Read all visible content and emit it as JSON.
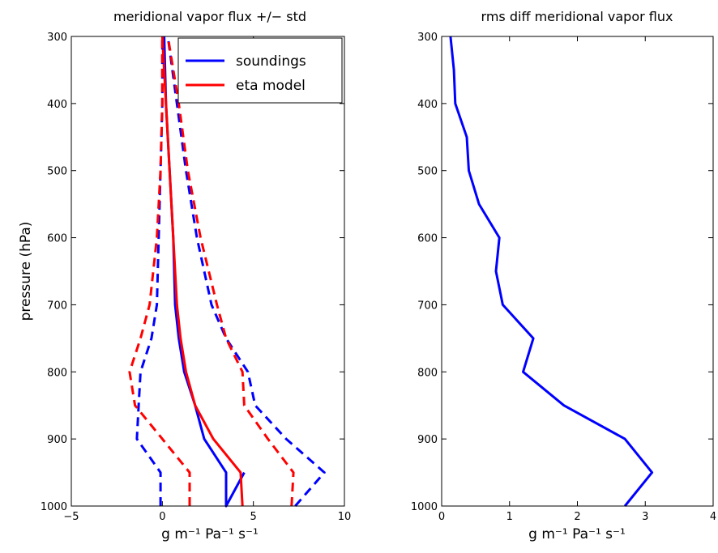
{
  "chart_data": [
    {
      "type": "line",
      "title": "meridional vapor flux +/− std",
      "xlabel": "g m⁻¹ Pa⁻¹ s⁻¹",
      "ylabel": "pressure (hPa)",
      "xlim": [
        -5,
        10
      ],
      "ylim": [
        1000,
        300
      ],
      "y_reversed": true,
      "xticks": [
        -5,
        0,
        5,
        10
      ],
      "yticks": [
        300,
        400,
        500,
        600,
        700,
        800,
        900,
        1000
      ],
      "xtick_labels": [
        "−5",
        "0",
        "5",
        "10"
      ],
      "ytick_labels": [
        "300",
        "400",
        "500",
        "600",
        "700",
        "800",
        "900",
        "1000"
      ],
      "legend": {
        "placement": "top-right",
        "entries": [
          {
            "label": "soundings",
            "color": "#0000ff"
          },
          {
            "label": "eta model",
            "color": "#ff0000"
          }
        ]
      },
      "series": [
        {
          "name": "soundings",
          "color": "#0000ff",
          "dash": "solid",
          "points": [
            [
              4.5,
              950
            ],
            [
              3.5,
              1000
            ],
            [
              3.5,
              950
            ],
            [
              2.3,
              900
            ],
            [
              1.8,
              850
            ],
            [
              1.2,
              800
            ],
            [
              0.9,
              750
            ],
            [
              0.7,
              700
            ],
            [
              0.6,
              600
            ],
            [
              0.4,
              500
            ],
            [
              0.2,
              400
            ],
            [
              0.1,
              300
            ]
          ]
        },
        {
          "name": "eta model",
          "color": "#ff0000",
          "dash": "solid",
          "points": [
            [
              4.4,
              1000
            ],
            [
              4.3,
              950
            ],
            [
              2.8,
              900
            ],
            [
              1.8,
              850
            ],
            [
              1.3,
              800
            ],
            [
              1.0,
              750
            ],
            [
              0.8,
              700
            ],
            [
              0.6,
              600
            ],
            [
              0.4,
              500
            ],
            [
              0.2,
              400
            ],
            [
              0.0,
              300
            ]
          ]
        },
        {
          "name": "",
          "color": "#0000ff",
          "dash": "dashed",
          "points": [
            [
              -0.1,
              1000
            ],
            [
              -0.1,
              950
            ],
            [
              -1.4,
              900
            ],
            [
              -1.3,
              850
            ],
            [
              -1.2,
              800
            ],
            [
              -0.6,
              750
            ],
            [
              -0.3,
              700
            ],
            [
              -0.2,
              600
            ],
            [
              -0.1,
              500
            ],
            [
              0.0,
              400
            ],
            [
              0.0,
              300
            ]
          ]
        },
        {
          "name": "",
          "color": "#0000ff",
          "dash": "dashed",
          "points": [
            [
              7.3,
              1000
            ],
            [
              8.9,
              950
            ],
            [
              6.8,
              900
            ],
            [
              5.1,
              850
            ],
            [
              4.7,
              800
            ],
            [
              3.5,
              750
            ],
            [
              2.7,
              700
            ],
            [
              1.9,
              600
            ],
            [
              1.3,
              500
            ],
            [
              0.8,
              400
            ],
            [
              0.3,
              300
            ]
          ]
        },
        {
          "name": "",
          "color": "#ff0000",
          "dash": "dashed",
          "points": [
            [
              1.5,
              1000
            ],
            [
              1.5,
              950
            ],
            [
              0.0,
              900
            ],
            [
              -1.5,
              850
            ],
            [
              -1.8,
              800
            ],
            [
              -1.2,
              750
            ],
            [
              -0.7,
              700
            ],
            [
              -0.3,
              600
            ],
            [
              -0.1,
              500
            ],
            [
              0.0,
              400
            ],
            [
              0.0,
              300
            ]
          ]
        },
        {
          "name": "",
          "color": "#ff0000",
          "dash": "dashed",
          "points": [
            [
              7.1,
              1000
            ],
            [
              7.2,
              950
            ],
            [
              5.8,
              900
            ],
            [
              4.5,
              850
            ],
            [
              4.4,
              800
            ],
            [
              3.5,
              750
            ],
            [
              3.0,
              700
            ],
            [
              2.1,
              600
            ],
            [
              1.4,
              500
            ],
            [
              0.9,
              400
            ],
            [
              0.3,
              300
            ]
          ]
        }
      ]
    },
    {
      "type": "line",
      "title": "rms diff meridional vapor flux",
      "xlabel": "g m⁻¹ Pa⁻¹ s⁻¹",
      "ylabel": "",
      "xlim": [
        0,
        4
      ],
      "ylim": [
        1000,
        300
      ],
      "y_reversed": true,
      "xticks": [
        0,
        1,
        2,
        3,
        4
      ],
      "yticks": [
        300,
        400,
        500,
        600,
        700,
        800,
        900,
        1000
      ],
      "xtick_labels": [
        "0",
        "1",
        "2",
        "3",
        "4"
      ],
      "ytick_labels": [
        "300",
        "400",
        "500",
        "600",
        "700",
        "800",
        "900",
        "1000"
      ],
      "series": [
        {
          "name": "",
          "color": "#0000ff",
          "dash": "solid",
          "points": [
            [
              2.7,
              1000
            ],
            [
              3.1,
              950
            ],
            [
              2.7,
              900
            ],
            [
              1.8,
              850
            ],
            [
              1.2,
              800
            ],
            [
              1.35,
              750
            ],
            [
              0.9,
              700
            ],
            [
              0.8,
              650
            ],
            [
              0.85,
              600
            ],
            [
              0.55,
              550
            ],
            [
              0.4,
              500
            ],
            [
              0.37,
              450
            ],
            [
              0.2,
              400
            ],
            [
              0.18,
              350
            ],
            [
              0.13,
              300
            ]
          ]
        }
      ]
    }
  ]
}
